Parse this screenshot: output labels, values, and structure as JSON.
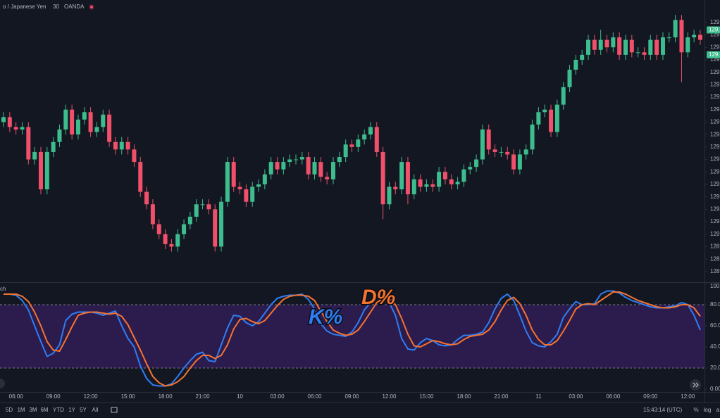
{
  "header": {
    "symbol": "o / Japanese Yen",
    "interval": "30",
    "source": "OANDA"
  },
  "chart_data": [
    {
      "type": "candlestick",
      "up_color": "#3dbd8d",
      "down_color": "#f0506a",
      "ylim": [
        128.81,
        129.94
      ],
      "yticks": [
        {
          "value": 129.85,
          "label": "129."
        },
        {
          "value": 129.8,
          "label": "129."
        },
        {
          "value": 129.75,
          "label": "129."
        },
        {
          "value": 129.7,
          "label": "129."
        },
        {
          "value": 129.65,
          "label": "129."
        },
        {
          "value": 129.6,
          "label": "129."
        },
        {
          "value": 129.55,
          "label": "129."
        },
        {
          "value": 129.5,
          "label": "129."
        },
        {
          "value": 129.45,
          "label": "129."
        },
        {
          "value": 129.4,
          "label": "129."
        },
        {
          "value": 129.35,
          "label": "129."
        },
        {
          "value": 129.3,
          "label": "129."
        },
        {
          "value": 129.25,
          "label": "129."
        },
        {
          "value": 129.2,
          "label": "129."
        },
        {
          "value": 129.15,
          "label": "129."
        },
        {
          "value": 129.1,
          "label": "129."
        },
        {
          "value": 129.05,
          "label": "129."
        },
        {
          "value": 129.0,
          "label": "129."
        },
        {
          "value": 128.95,
          "label": "128."
        },
        {
          "value": 128.9,
          "label": "128."
        },
        {
          "value": 128.85,
          "label": "128."
        }
      ],
      "price_markers": [
        {
          "value": 129.82,
          "label": "129."
        },
        {
          "value": 129.72,
          "label": "129."
        }
      ],
      "candles": [
        [
          129.45,
          129.49,
          129.43,
          129.47
        ],
        [
          129.47,
          129.49,
          129.41,
          129.43
        ],
        [
          129.43,
          129.45,
          129.4,
          129.42
        ],
        [
          129.42,
          129.45,
          129.4,
          129.43
        ],
        [
          129.43,
          129.45,
          129.28,
          129.3
        ],
        [
          129.3,
          129.35,
          129.28,
          129.33
        ],
        [
          129.33,
          129.35,
          129.16,
          129.18
        ],
        [
          129.18,
          129.35,
          129.16,
          129.33
        ],
        [
          129.33,
          129.39,
          129.31,
          129.37
        ],
        [
          129.37,
          129.44,
          129.35,
          129.42
        ],
        [
          129.42,
          129.52,
          129.4,
          129.5
        ],
        [
          129.5,
          129.52,
          129.38,
          129.4
        ],
        [
          129.4,
          129.48,
          129.38,
          129.46
        ],
        [
          129.46,
          129.51,
          129.44,
          129.49
        ],
        [
          129.49,
          129.51,
          129.39,
          129.41
        ],
        [
          129.41,
          129.45,
          129.39,
          129.43
        ],
        [
          129.43,
          129.5,
          129.41,
          129.48
        ],
        [
          129.48,
          129.5,
          129.35,
          129.37
        ],
        [
          129.37,
          129.39,
          129.32,
          129.34
        ],
        [
          129.34,
          129.39,
          129.32,
          129.37
        ],
        [
          129.37,
          129.39,
          129.32,
          129.34
        ],
        [
          129.34,
          129.36,
          129.27,
          129.29
        ],
        [
          129.29,
          129.31,
          129.15,
          129.17
        ],
        [
          129.17,
          129.19,
          129.1,
          129.12
        ],
        [
          129.12,
          129.14,
          129.02,
          129.04
        ],
        [
          129.04,
          129.06,
          128.98,
          129.0
        ],
        [
          129.0,
          129.02,
          128.94,
          128.96
        ],
        [
          128.96,
          128.98,
          128.93,
          128.95
        ],
        [
          128.95,
          129.02,
          128.93,
          129.0
        ],
        [
          129.0,
          129.06,
          128.98,
          129.04
        ],
        [
          129.04,
          129.09,
          129.02,
          129.07
        ],
        [
          129.07,
          129.14,
          129.05,
          129.12
        ],
        [
          129.12,
          129.14,
          129.1,
          129.12
        ],
        [
          129.12,
          129.14,
          129.08,
          129.1
        ],
        [
          129.1,
          129.12,
          128.93,
          128.95
        ],
        [
          128.95,
          129.15,
          128.93,
          129.13
        ],
        [
          129.13,
          129.31,
          129.11,
          129.29
        ],
        [
          129.29,
          129.31,
          129.17,
          129.19
        ],
        [
          129.19,
          129.21,
          129.16,
          129.18
        ],
        [
          129.18,
          129.2,
          129.11,
          129.13
        ],
        [
          129.13,
          129.21,
          129.11,
          129.19
        ],
        [
          129.19,
          129.22,
          129.17,
          129.2
        ],
        [
          129.2,
          129.26,
          129.18,
          129.24
        ],
        [
          129.24,
          129.31,
          129.22,
          129.29
        ],
        [
          129.29,
          129.31,
          129.24,
          129.26
        ],
        [
          129.26,
          129.31,
          129.24,
          129.29
        ],
        [
          129.29,
          129.32,
          129.27,
          129.3
        ],
        [
          129.3,
          129.32,
          129.28,
          129.3
        ],
        [
          129.3,
          129.33,
          129.28,
          129.31
        ],
        [
          129.31,
          129.33,
          129.22,
          129.24
        ],
        [
          129.24,
          129.31,
          129.22,
          129.29
        ],
        [
          129.29,
          129.31,
          129.21,
          129.23
        ],
        [
          129.23,
          129.25,
          129.2,
          129.22
        ],
        [
          129.22,
          129.31,
          129.2,
          129.29
        ],
        [
          129.29,
          129.33,
          129.27,
          129.31
        ],
        [
          129.31,
          129.38,
          129.29,
          129.36
        ],
        [
          129.36,
          129.38,
          129.33,
          129.35
        ],
        [
          129.35,
          129.4,
          129.33,
          129.38
        ],
        [
          129.38,
          129.42,
          129.36,
          129.4
        ],
        [
          129.4,
          129.45,
          129.38,
          129.43
        ],
        [
          129.43,
          129.45,
          129.31,
          129.33
        ],
        [
          129.33,
          129.35,
          129.06,
          129.12
        ],
        [
          129.12,
          129.21,
          129.1,
          129.19
        ],
        [
          129.19,
          129.21,
          129.16,
          129.18
        ],
        [
          129.18,
          129.31,
          129.16,
          129.29
        ],
        [
          129.29,
          129.31,
          129.12,
          129.16
        ],
        [
          129.16,
          129.24,
          129.14,
          129.22
        ],
        [
          129.22,
          129.24,
          129.17,
          129.19
        ],
        [
          129.19,
          129.22,
          129.17,
          129.2
        ],
        [
          129.2,
          129.22,
          129.17,
          129.19
        ],
        [
          129.19,
          129.27,
          129.17,
          129.25
        ],
        [
          129.25,
          129.27,
          129.2,
          129.22
        ],
        [
          129.22,
          129.24,
          129.18,
          129.2
        ],
        [
          129.2,
          129.23,
          129.18,
          129.21
        ],
        [
          129.21,
          129.28,
          129.19,
          129.26
        ],
        [
          129.26,
          129.29,
          129.24,
          129.27
        ],
        [
          129.27,
          129.32,
          129.25,
          129.3
        ],
        [
          129.3,
          129.44,
          129.28,
          129.42
        ],
        [
          129.42,
          129.44,
          129.32,
          129.34
        ],
        [
          129.34,
          129.36,
          129.31,
          129.33
        ],
        [
          129.33,
          129.35,
          129.31,
          129.33
        ],
        [
          129.33,
          129.35,
          129.3,
          129.32
        ],
        [
          129.32,
          129.34,
          129.24,
          129.26
        ],
        [
          129.26,
          129.34,
          129.24,
          129.32
        ],
        [
          129.32,
          129.36,
          129.3,
          129.34
        ],
        [
          129.34,
          129.46,
          129.32,
          129.44
        ],
        [
          129.44,
          129.51,
          129.42,
          129.49
        ],
        [
          129.49,
          129.52,
          129.47,
          129.5
        ],
        [
          129.5,
          129.52,
          129.39,
          129.41
        ],
        [
          129.41,
          129.54,
          129.39,
          129.52
        ],
        [
          129.52,
          129.61,
          129.5,
          129.59
        ],
        [
          129.59,
          129.68,
          129.57,
          129.66
        ],
        [
          129.66,
          129.72,
          129.64,
          129.7
        ],
        [
          129.7,
          129.74,
          129.68,
          129.72
        ],
        [
          129.72,
          129.8,
          129.7,
          129.78
        ],
        [
          129.78,
          129.8,
          129.72,
          129.74
        ],
        [
          129.74,
          129.82,
          129.72,
          129.78
        ],
        [
          129.78,
          129.8,
          129.73,
          129.75
        ],
        [
          129.75,
          129.81,
          129.73,
          129.79
        ],
        [
          129.79,
          129.81,
          129.7,
          129.72
        ],
        [
          129.72,
          129.8,
          129.7,
          129.78
        ],
        [
          129.78,
          129.8,
          129.71,
          129.73
        ],
        [
          129.73,
          129.75,
          129.71,
          129.73
        ],
        [
          129.73,
          129.75,
          129.7,
          129.72
        ],
        [
          129.72,
          129.8,
          129.7,
          129.78
        ],
        [
          129.78,
          129.8,
          129.7,
          129.72
        ],
        [
          129.72,
          129.81,
          129.7,
          129.79
        ],
        [
          129.79,
          129.81,
          129.77,
          129.79
        ],
        [
          129.79,
          129.88,
          129.77,
          129.86
        ],
        [
          129.86,
          129.88,
          129.61,
          129.73
        ],
        [
          129.73,
          129.81,
          129.71,
          129.79
        ],
        [
          129.79,
          129.82,
          129.77,
          129.8
        ],
        [
          129.8,
          129.82,
          129.76,
          129.78
        ]
      ]
    },
    {
      "type": "line",
      "title": "ch",
      "categories": [
        null,
        null,
        "06:00",
        null,
        null,
        null,
        null,
        null,
        "09:00",
        null,
        null,
        null,
        null,
        null,
        "12:00",
        null,
        null,
        null,
        null,
        null,
        "15:00",
        null,
        null,
        null,
        null,
        null,
        "18:00",
        null,
        null,
        null,
        null,
        null,
        "21:00",
        null,
        null,
        null,
        null,
        null,
        "10",
        null,
        null,
        null,
        null,
        null,
        "03:00",
        null,
        null,
        null,
        null,
        null,
        "06:00",
        null,
        null,
        null,
        null,
        null,
        "09:00",
        null,
        null,
        null,
        null,
        null,
        "12:00",
        null,
        null,
        null,
        null,
        null,
        "15:00",
        null,
        null,
        null,
        null,
        null,
        "18:00",
        null,
        null,
        null,
        null,
        null,
        "21:00",
        null,
        null,
        null,
        null,
        null,
        "11",
        null,
        null,
        null,
        null,
        null,
        "03:00",
        null,
        null,
        null,
        null,
        null,
        "06:00",
        null,
        null,
        null,
        null,
        null,
        "09:00",
        null,
        null,
        null,
        null,
        null,
        "12:00",
        null,
        null
      ],
      "series": [
        {
          "name": "K%",
          "color": "#2f7df2",
          "values": [
            90,
            90,
            89,
            84,
            75,
            60,
            45,
            31,
            34,
            42,
            65,
            71,
            73,
            73,
            73,
            72,
            70,
            72,
            74,
            60,
            48,
            40,
            22,
            10,
            4,
            3,
            3,
            5,
            12,
            20,
            27,
            33,
            35,
            27,
            26,
            42,
            58,
            70,
            69,
            63,
            60,
            64,
            72,
            80,
            86,
            88,
            89,
            89,
            90,
            85,
            76,
            62,
            55,
            52,
            51,
            50,
            54,
            63,
            75,
            82,
            88,
            88,
            82,
            70,
            48,
            38,
            37,
            44,
            48,
            46,
            42,
            41,
            42,
            47,
            51,
            51,
            52,
            54,
            63,
            76,
            86,
            90,
            84,
            70,
            55,
            44,
            41,
            40,
            45,
            52,
            68,
            76,
            83,
            80,
            80,
            81,
            90,
            93,
            93,
            91,
            87,
            84,
            82,
            80,
            78,
            77,
            77,
            78,
            79,
            82,
            80,
            70,
            56
          ]
        },
        {
          "name": "D%",
          "color": "#f47330",
          "values": [
            90,
            90,
            90,
            88,
            83,
            73,
            60,
            45,
            37,
            36,
            47,
            59,
            70,
            72,
            73,
            73,
            72,
            71,
            72,
            69,
            61,
            49,
            37,
            24,
            12,
            6,
            3,
            4,
            7,
            12,
            20,
            27,
            32,
            32,
            29,
            32,
            42,
            57,
            66,
            67,
            64,
            62,
            65,
            72,
            79,
            85,
            88,
            89,
            89,
            88,
            84,
            74,
            64,
            56,
            53,
            51,
            52,
            56,
            64,
            73,
            82,
            86,
            86,
            80,
            67,
            52,
            41,
            40,
            43,
            46,
            45,
            43,
            42,
            43,
            47,
            50,
            51,
            52,
            56,
            64,
            75,
            84,
            87,
            81,
            70,
            56,
            47,
            42,
            42,
            46,
            55,
            65,
            76,
            80,
            81,
            80,
            84,
            88,
            92,
            92,
            90,
            87,
            84,
            82,
            80,
            78,
            77,
            77,
            78,
            80,
            80,
            77,
            69
          ]
        }
      ],
      "ylim": [
        0,
        100
      ],
      "yticks": [
        {
          "value": 100,
          "label": "100.0"
        },
        {
          "value": 80,
          "label": "80.00"
        },
        {
          "value": 60,
          "label": "60.00"
        },
        {
          "value": 40,
          "label": "40.00"
        },
        {
          "value": 20,
          "label": "20.00"
        },
        {
          "value": 0,
          "label": "0.00"
        }
      ],
      "band": [
        20,
        80
      ],
      "band_color": "#2c1b4d"
    }
  ],
  "toolbar": {
    "ranges": [
      "5D",
      "1M",
      "3M",
      "6M",
      "YTD",
      "1Y",
      "5Y",
      "All"
    ],
    "time": "15:43:14 (UTC)",
    "options": [
      "%",
      "log",
      "a"
    ]
  }
}
